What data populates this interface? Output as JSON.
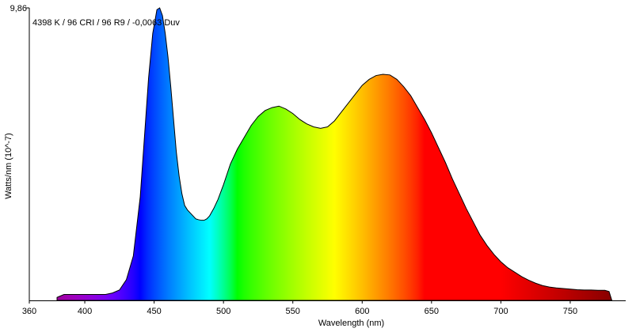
{
  "chart_data": {
    "type": "area",
    "title": "",
    "annotation": "4398 K / 96 CRI / 96 R9 / -0,0063 Duv",
    "xlabel": "Wavelength (nm)",
    "ylabel": "Watts/nm (10^-7)",
    "xlim": [
      360,
      790
    ],
    "ylim": [
      0,
      9.86
    ],
    "y_top_label": "9,86",
    "x_ticks": [
      360,
      400,
      450,
      500,
      550,
      600,
      650,
      700,
      750
    ],
    "fill": "visible-spectrum-gradient",
    "outline_color": "#000000",
    "grid": false,
    "series": [
      {
        "x": [
          380,
          385,
          390,
          395,
          400,
          405,
          410,
          415,
          420,
          425,
          430,
          435,
          440,
          443,
          446,
          449,
          452,
          454,
          456,
          458,
          460,
          462,
          464,
          466,
          468,
          470,
          472,
          474,
          476,
          478,
          480,
          482,
          484,
          486,
          488,
          490,
          493,
          496,
          500,
          505,
          510,
          515,
          520,
          525,
          530,
          535,
          540,
          545,
          550,
          555,
          560,
          565,
          570,
          575,
          580,
          585,
          590,
          595,
          600,
          605,
          610,
          615,
          620,
          625,
          630,
          635,
          640,
          645,
          650,
          655,
          660,
          665,
          670,
          675,
          680,
          685,
          690,
          695,
          700,
          705,
          710,
          715,
          720,
          725,
          730,
          735,
          740,
          745,
          750,
          755,
          760,
          765,
          770,
          775,
          778,
          780
        ],
        "y": [
          0.1,
          0.2,
          0.2,
          0.2,
          0.2,
          0.2,
          0.2,
          0.2,
          0.25,
          0.35,
          0.7,
          1.5,
          3.5,
          5.5,
          7.5,
          9.0,
          9.8,
          9.86,
          9.6,
          9.0,
          8.2,
          7.2,
          6.1,
          5.0,
          4.2,
          3.6,
          3.2,
          3.05,
          2.95,
          2.85,
          2.75,
          2.72,
          2.7,
          2.7,
          2.75,
          2.85,
          3.1,
          3.4,
          3.9,
          4.6,
          5.1,
          5.5,
          5.9,
          6.2,
          6.4,
          6.5,
          6.55,
          6.45,
          6.3,
          6.1,
          5.95,
          5.85,
          5.8,
          5.85,
          6.05,
          6.35,
          6.65,
          6.95,
          7.25,
          7.45,
          7.58,
          7.62,
          7.6,
          7.45,
          7.2,
          6.9,
          6.5,
          6.1,
          5.65,
          5.15,
          4.65,
          4.1,
          3.6,
          3.1,
          2.65,
          2.2,
          1.85,
          1.55,
          1.3,
          1.1,
          0.95,
          0.8,
          0.68,
          0.58,
          0.5,
          0.45,
          0.42,
          0.4,
          0.38,
          0.36,
          0.35,
          0.35,
          0.34,
          0.34,
          0.3,
          0.0
        ]
      }
    ]
  }
}
